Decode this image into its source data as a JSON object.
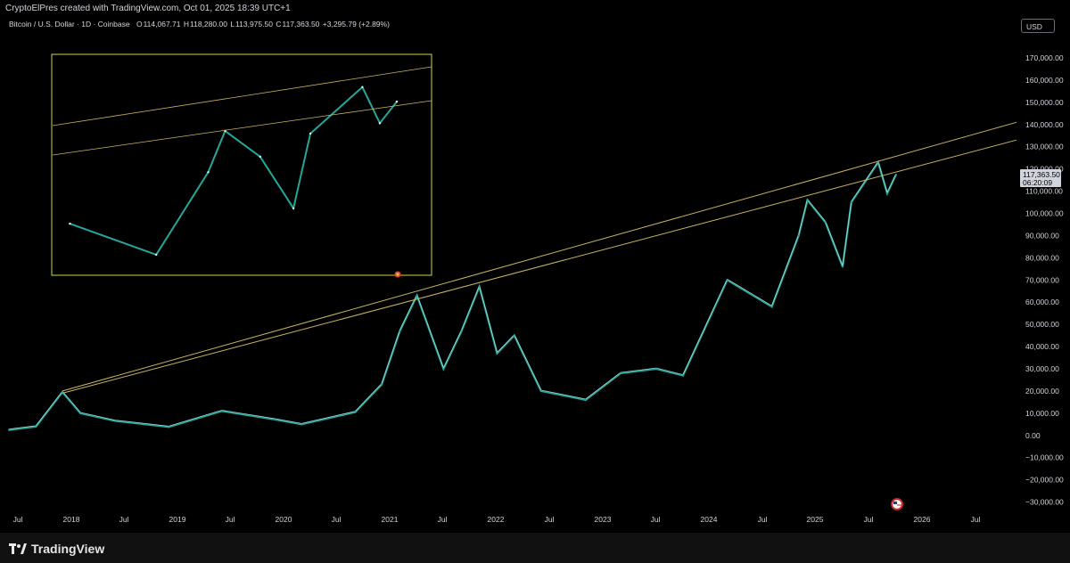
{
  "header": {
    "attribution": "CryptoElPres created with TradingView.com, Oct 01, 2025 18:39 UTC+1",
    "symbol": "Bitcoin / U.S. Dollar · 1D · Coinbase",
    "ohlc": {
      "open_label": "O",
      "open": "114,067.71",
      "high_label": "H",
      "high": "118,280.00",
      "low_label": "L",
      "low": "113,975.50",
      "close_label": "C",
      "close": "117,363.50",
      "change": "+3,295.79 (+2.89%)"
    },
    "currency_button": "USD"
  },
  "price_tag": {
    "price": "117,363.50",
    "countdown": "06:20:09"
  },
  "footer": {
    "logo_text": "TradingView"
  },
  "colors": {
    "background": "#000000",
    "candle_up": "#26a69a",
    "candle_down": "#e6f7f4",
    "trendline": "#c8b560",
    "inset_border": "#d4d44c"
  },
  "chart_data": {
    "type": "line",
    "description_visible": "daily candlestick",
    "y_axis": {
      "ticks": [
        "170,000.00",
        "160,000.00",
        "150,000.00",
        "140,000.00",
        "130,000.00",
        "120,000.00",
        "110,000.00",
        "100,000.00",
        "90,000.00",
        "80,000.00",
        "70,000.00",
        "60,000.00",
        "50,000.00",
        "40,000.00",
        "30,000.00",
        "20,000.00",
        "10,000.00",
        "0.00",
        "−10,000.00",
        "−20,000.00",
        "−30,000.00"
      ],
      "range": [
        -30000,
        170000
      ]
    },
    "x_axis": {
      "ticks": [
        "Jul",
        "2018",
        "Jul",
        "2019",
        "Jul",
        "2020",
        "Jul",
        "2021",
        "Jul",
        "2022",
        "Jul",
        "2023",
        "Jul",
        "2024",
        "Jul",
        "2025",
        "Jul",
        "2026",
        "Jul"
      ]
    },
    "series": [
      {
        "x": [
          "2017-06",
          "2017-09",
          "2017-12",
          "2018-02",
          "2018-06",
          "2018-12",
          "2019-06",
          "2019-12",
          "2020-03",
          "2020-09",
          "2020-12",
          "2021-02",
          "2021-04",
          "2021-07",
          "2021-09",
          "2021-11",
          "2022-01",
          "2022-03",
          "2022-06",
          "2022-11",
          "2023-03",
          "2023-07",
          "2023-10",
          "2024-03",
          "2024-08",
          "2024-11",
          "2024-12",
          "2025-02",
          "2025-04",
          "2025-05",
          "2025-08",
          "2025-09",
          "2025-10"
        ],
        "values": [
          2500,
          4000,
          19500,
          10000,
          6500,
          3800,
          11000,
          7200,
          5000,
          10500,
          23000,
          47000,
          63000,
          30000,
          47000,
          67000,
          37000,
          45000,
          20000,
          16000,
          28000,
          30000,
          27000,
          70000,
          58000,
          90000,
          106000,
          96000,
          76000,
          105000,
          123000,
          109000,
          117363
        ]
      }
    ],
    "trendlines": [
      {
        "from": [
          "2017-12",
          20000
        ],
        "to": [
          "2026-11",
          141000
        ]
      },
      {
        "from": [
          "2017-12",
          19000
        ],
        "to": [
          "2026-11",
          133000
        ]
      }
    ],
    "grid": false,
    "legend": "none"
  }
}
